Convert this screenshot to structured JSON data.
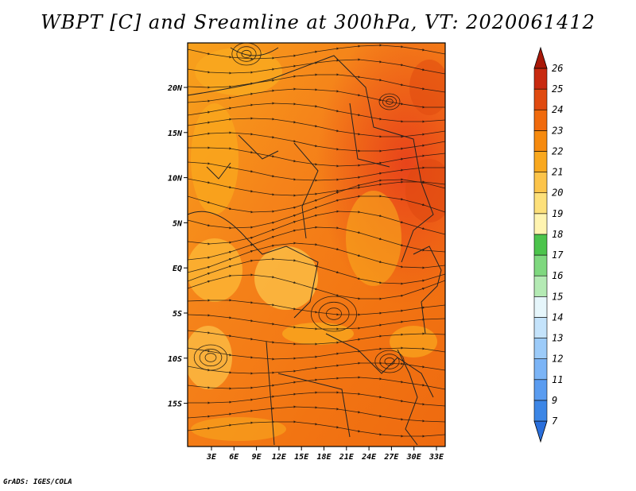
{
  "title": "WBPT [C] and Sreamline at 300hPa, VT: 2020061412",
  "credit": "GrADS: IGES/COLA",
  "map": {
    "lon_labels": [
      "3E",
      "6E",
      "9E",
      "12E",
      "15E",
      "18E",
      "21E",
      "24E",
      "27E",
      "30E",
      "33E"
    ],
    "lat_labels": [
      "20N",
      "15N",
      "10N",
      "5N",
      "EQ",
      "5S",
      "10S",
      "15S"
    ]
  },
  "colorbar": {
    "labels": [
      "7",
      "9",
      "11",
      "12",
      "13",
      "14",
      "15",
      "16",
      "17",
      "18",
      "19",
      "20",
      "21",
      "22",
      "23",
      "24",
      "25",
      "26"
    ],
    "colors": [
      "#2a6fdc",
      "#3c86e6",
      "#5a9cf0",
      "#7bb4f6",
      "#9ccbf9",
      "#c4e3fb",
      "#e6f6fb",
      "#b4eab4",
      "#7fd87f",
      "#4cc44c",
      "#fff4b0",
      "#fde07a",
      "#fcc44a",
      "#f9a81e",
      "#f68a0e",
      "#f06a0c",
      "#e04a10",
      "#c82a10",
      "#a81808"
    ]
  }
}
